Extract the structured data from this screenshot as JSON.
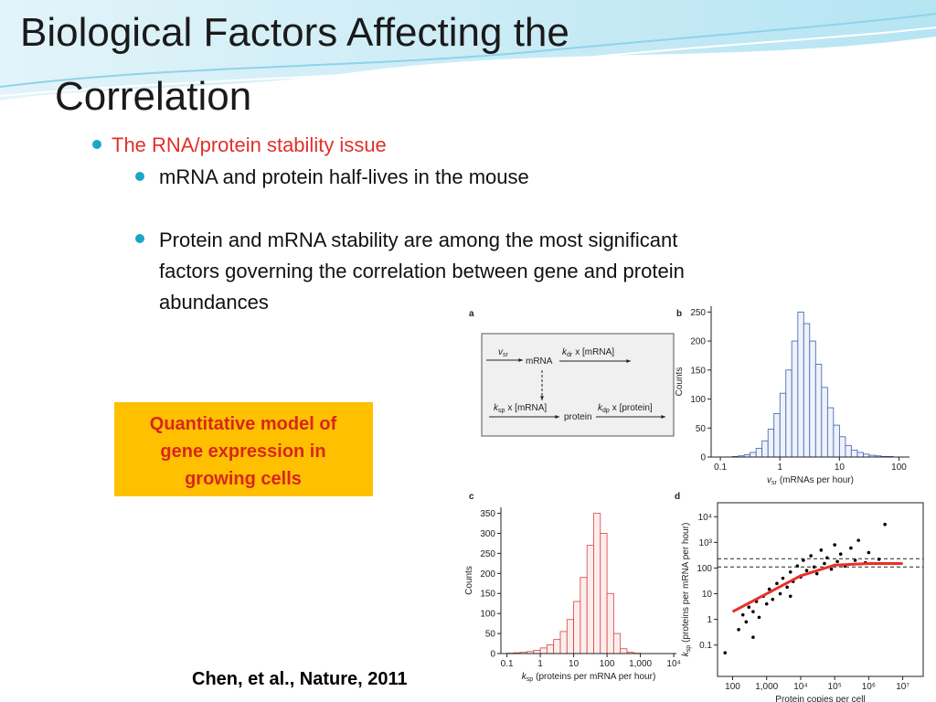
{
  "slide": {
    "title": [
      "Biological Factors Affecting the",
      "Correlation"
    ],
    "bullet": "The RNA/protein stability issue",
    "sub_bullets": [
      "mRNA and protein half-lives in the mouse",
      "Protein and mRNA stability are among the most significant",
      "factors governing the correlation between gene and protein",
      "abundances"
    ],
    "callout": [
      "Quantitative model of",
      "gene expression in",
      "growing cells"
    ],
    "citation": "Chen, et al., Nature, 2011"
  },
  "figure": {
    "panels": [
      {
        "letter": "a",
        "type": "diagram",
        "nodes": [
          "mRNA",
          "protein"
        ],
        "rates": [
          {
            "symbol": "v",
            "sub": "sr"
          },
          {
            "symbol": "k",
            "sub": "dr",
            "text": "x [mRNA]"
          },
          {
            "symbol": "k",
            "sub": "sp",
            "text": "x [mRNA]"
          },
          {
            "symbol": "k",
            "sub": "dp",
            "text": "x [protein]"
          }
        ]
      },
      {
        "letter": "b",
        "type": "histogram",
        "color": "#3a5fb0",
        "fill": "#eef2fb",
        "log_x": true,
        "bins": [
          0.1,
          0.126,
          0.158,
          0.2,
          0.251,
          0.316,
          0.398,
          0.501,
          0.631,
          0.794,
          1,
          1.26,
          1.58,
          2,
          2.51,
          3.16,
          3.98,
          5.01,
          6.31,
          7.94,
          10,
          12.6,
          15.8,
          20,
          25.1,
          31.6,
          39.8,
          50.1,
          63.1,
          79.4,
          100
        ],
        "values": [
          0,
          0,
          1,
          2,
          4,
          8,
          15,
          28,
          48,
          75,
          110,
          150,
          200,
          250,
          230,
          200,
          160,
          120,
          85,
          55,
          35,
          20,
          12,
          8,
          5,
          3,
          2,
          1,
          1,
          0
        ],
        "xlim": [
          0.07,
          150
        ],
        "ylim": [
          0,
          260
        ],
        "xticks": [
          0.1,
          1,
          10,
          100
        ],
        "yticks": [
          0,
          50,
          100,
          150,
          200,
          250
        ],
        "ylabel": {
          "text": "Counts"
        },
        "xlabel": {
          "symbol": "v",
          "sub": "sr",
          "text": "(mRNAs per hour)"
        }
      },
      {
        "letter": "c",
        "type": "histogram",
        "color": "#d9413c",
        "fill": "#fdeeee",
        "log_x": true,
        "bins": [
          0.1,
          0.158,
          0.251,
          0.398,
          0.631,
          1,
          1.58,
          2.51,
          3.98,
          6.31,
          10,
          15.8,
          25.1,
          39.8,
          63.1,
          100,
          158,
          251,
          398,
          631,
          1000,
          1580,
          2510,
          3980,
          6310,
          10000
        ],
        "values": [
          1,
          2,
          3,
          5,
          8,
          14,
          22,
          35,
          55,
          85,
          130,
          190,
          270,
          350,
          300,
          150,
          50,
          12,
          3,
          1,
          0,
          0,
          0,
          0,
          0
        ],
        "xlim": [
          0.066,
          12000
        ],
        "ylim": [
          0,
          365
        ],
        "xticks": [
          0.1,
          1,
          10,
          100,
          {
            "value": 1000,
            "label": "1,000"
          },
          {
            "value": 10000,
            "label": "10⁴"
          }
        ],
        "yticks": [
          0,
          50,
          100,
          150,
          200,
          250,
          300,
          350
        ],
        "ylabel": {
          "text": "Counts"
        },
        "xlabel": {
          "symbol": "k",
          "sub": "sp",
          "text": "(proteins per mRNA per hour)"
        }
      },
      {
        "letter": "d",
        "type": "scatter",
        "log_x": true,
        "log_y": true,
        "color": "#000000",
        "fit_color": "#e8302a",
        "x": [
          150,
          200,
          250,
          300,
          400,
          500,
          600,
          800,
          1000,
          1200,
          1500,
          2000,
          2500,
          3000,
          4000,
          5000,
          6000,
          8000,
          10000,
          12000,
          15000,
          20000,
          25000,
          30000,
          40000,
          50000,
          60000,
          80000,
          100000,
          120000,
          150000,
          200000,
          300000,
          400000,
          500000,
          800000,
          1000000,
          2000000,
          3000000,
          400,
          5000,
          60
        ],
        "y": [
          0.4,
          1.5,
          0.8,
          3,
          2,
          5,
          1.2,
          8,
          4,
          15,
          6,
          25,
          10,
          40,
          18,
          70,
          30,
          120,
          45,
          200,
          80,
          300,
          110,
          60,
          500,
          150,
          250,
          90,
          800,
          180,
          350,
          120,
          600,
          200,
          1200,
          160,
          400,
          220,
          5000,
          0.2,
          8,
          0.05
        ],
        "fit_x": [
          100,
          1000,
          10000,
          100000,
          1000000,
          10000000
        ],
        "fit_y": [
          2,
          10,
          50,
          130,
          150,
          150
        ],
        "reference_lines": [
          110,
          230
        ],
        "xlim": [
          36,
          40000000
        ],
        "ylim": [
          0.006,
          35000
        ],
        "xticks": [
          100,
          {
            "value": 1000,
            "label": "1,000"
          },
          {
            "value": 10000,
            "label": "10⁴"
          },
          {
            "value": 100000,
            "label": "10⁵"
          },
          {
            "value": 1000000,
            "label": "10⁶"
          },
          {
            "value": 10000000,
            "label": "10⁷"
          }
        ],
        "yticks": [
          0.1,
          1,
          10,
          100,
          {
            "value": 1000,
            "label": "10³"
          },
          {
            "value": 10000,
            "label": "10⁴"
          }
        ],
        "xlabel": {
          "text": "Protein copies per cell"
        },
        "ylabel": {
          "symbol": "k",
          "sub": "sp",
          "text": "(proteins per mRNA per hour)"
        }
      }
    ]
  }
}
